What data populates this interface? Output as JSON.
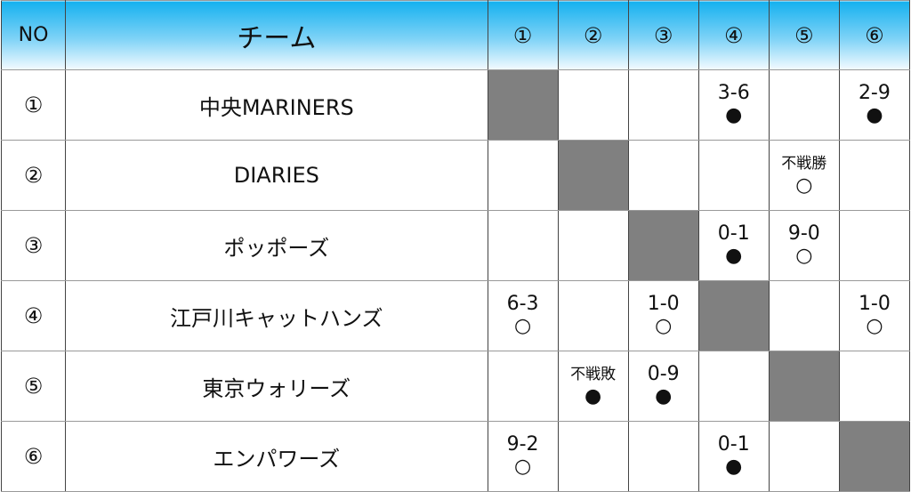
{
  "header": {
    "no": "NO",
    "team": "チーム",
    "opponents": [
      "①",
      "②",
      "③",
      "④",
      "⑤",
      "⑥"
    ]
  },
  "rows": [
    {
      "no": "①",
      "team": "中央MARINERS",
      "cells": [
        "self",
        null,
        null,
        {
          "score": "3-6",
          "mark": "●"
        },
        null,
        {
          "score": "2-9",
          "mark": "●"
        }
      ]
    },
    {
      "no": "②",
      "team": "DIARIES",
      "cells": [
        null,
        "self",
        null,
        null,
        {
          "score": "不戦勝",
          "mark": "○",
          "small": true
        },
        null
      ]
    },
    {
      "no": "③",
      "team": "ポッポーズ",
      "cells": [
        null,
        null,
        "self",
        {
          "score": "0-1",
          "mark": "●"
        },
        {
          "score": "9-0",
          "mark": "○"
        },
        null
      ]
    },
    {
      "no": "④",
      "team": "江戸川キャットハンズ",
      "cells": [
        {
          "score": "6-3",
          "mark": "○"
        },
        null,
        {
          "score": "1-0",
          "mark": "○"
        },
        "self",
        null,
        {
          "score": "1-0",
          "mark": "○"
        }
      ]
    },
    {
      "no": "⑤",
      "team": "東京ウォリーズ",
      "cells": [
        null,
        {
          "score": "不戦敗",
          "mark": "●",
          "small": true
        },
        {
          "score": "0-9",
          "mark": "●"
        },
        null,
        "self",
        null
      ]
    },
    {
      "no": "⑥",
      "team": "エンパワーズ",
      "cells": [
        {
          "score": "9-2",
          "mark": "○"
        },
        null,
        null,
        {
          "score": "0-1",
          "mark": "●"
        },
        null,
        "self"
      ]
    }
  ],
  "colors": {
    "header_top": "#14b1ef",
    "header_bottom": "#f4fbff",
    "self_cell": "#808080"
  }
}
